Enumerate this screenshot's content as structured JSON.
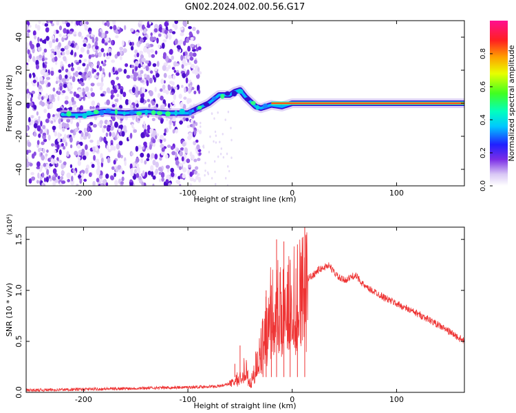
{
  "title": "GN02.2024.002.00.56.G17",
  "chart_data": [
    {
      "type": "heatmap",
      "xlabel": "Height of straight line (km)",
      "ylabel": "Frequency (Hz)",
      "xlim": [
        -255,
        165
      ],
      "ylim": [
        -50,
        50
      ],
      "xticks": [
        -200,
        -100,
        0,
        100
      ],
      "xtick_labels": [
        "-200",
        "-100",
        "0",
        "100"
      ],
      "yticks": [
        -40,
        -20,
        0,
        20,
        40
      ],
      "ytick_labels": [
        "-40",
        "-20",
        "0",
        "20",
        "40"
      ],
      "colorbar": {
        "label": "Normalized spectral amplitude",
        "range": [
          0,
          1
        ],
        "ticks": [
          0.0,
          0.2,
          0.4,
          0.6,
          0.8
        ],
        "tick_labels": [
          "0.0",
          "0.2",
          "0.4",
          "0.6",
          "0.8"
        ]
      },
      "ridge": {
        "x": [
          -220,
          -200,
          -180,
          -160,
          -140,
          -120,
          -100,
          -90,
          -80,
          -70,
          -60,
          -55,
          -50,
          -45,
          -40,
          -35,
          -30,
          -20,
          -10,
          0,
          20,
          60,
          100,
          165
        ],
        "y": [
          -7,
          -7,
          -5,
          -6,
          -5,
          -6,
          -6,
          -3,
          0,
          5,
          5,
          7,
          8,
          4,
          1,
          -2,
          -3,
          -1,
          -2,
          0,
          0,
          0,
          0,
          0
        ]
      },
      "noise_extent_x": [
        -255,
        -88
      ]
    },
    {
      "type": "line",
      "xlabel": "Height of straight line (km)",
      "ylabel": "SNR (10 * v/v)",
      "scale_label": "(x10⁴)",
      "xlim": [
        -255,
        165
      ],
      "ylim": [
        0,
        1.62
      ],
      "xticks": [
        -200,
        -100,
        0,
        100
      ],
      "xtick_labels": [
        "-200",
        "-100",
        "0",
        "100"
      ],
      "yticks": [
        0.0,
        0.5,
        1.0,
        1.5
      ],
      "ytick_labels": [
        "0.0",
        "0.5",
        "1.0",
        "1.5"
      ],
      "line_color": "#ee3333",
      "envelope": {
        "x": [
          -255,
          -150,
          -100,
          -70,
          -55,
          -50,
          -45,
          -40,
          -35,
          -30,
          -25,
          -20,
          -15,
          -10,
          -5,
          0,
          5,
          10,
          15,
          20,
          25,
          30,
          35,
          40,
          45,
          50,
          55,
          60,
          65,
          70,
          80,
          90,
          100,
          110,
          120,
          130,
          140,
          150,
          160,
          165
        ],
        "y": [
          0.02,
          0.04,
          0.05,
          0.06,
          0.1,
          0.18,
          0.25,
          0.1,
          0.25,
          0.45,
          0.7,
          0.9,
          0.95,
          0.9,
          1.0,
          1.0,
          1.05,
          1.1,
          1.12,
          1.15,
          1.2,
          1.22,
          1.25,
          1.18,
          1.12,
          1.1,
          1.12,
          1.15,
          1.1,
          1.03,
          0.98,
          0.92,
          0.87,
          0.82,
          0.77,
          0.72,
          0.66,
          0.6,
          0.53,
          0.5
        ]
      },
      "spikes": [
        {
          "x": -55,
          "y": 0.28
        },
        {
          "x": -50,
          "y": 0.46
        },
        {
          "x": -35,
          "y": 0.4
        },
        {
          "x": -28,
          "y": 0.7
        },
        {
          "x": -25,
          "y": 1.0
        },
        {
          "x": -20,
          "y": 1.05
        },
        {
          "x": -15,
          "y": 1.5
        },
        {
          "x": -8,
          "y": 1.48
        },
        {
          "x": -2,
          "y": 1.3
        },
        {
          "x": 5,
          "y": 1.45
        },
        {
          "x": 12,
          "y": 1.62
        }
      ]
    }
  ]
}
